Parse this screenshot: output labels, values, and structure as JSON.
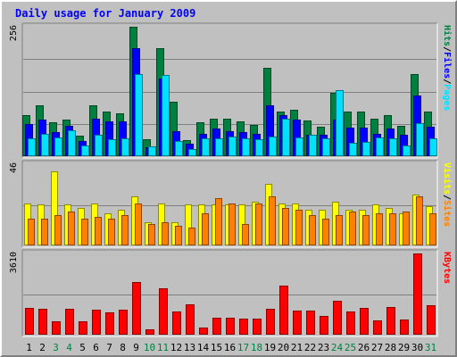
{
  "chart_data": {
    "type": "bar",
    "title": "Daily usage for January 2009",
    "categories": [
      "1",
      "2",
      "3",
      "4",
      "5",
      "6",
      "7",
      "8",
      "9",
      "10",
      "11",
      "12",
      "13",
      "14",
      "15",
      "16",
      "17",
      "18",
      "19",
      "20",
      "21",
      "22",
      "23",
      "24",
      "25",
      "26",
      "27",
      "28",
      "29",
      "30",
      "31"
    ],
    "weekend_days": [
      "3",
      "4",
      "10",
      "11",
      "17",
      "18",
      "24",
      "25",
      "31"
    ],
    "panels": [
      {
        "id": "hits-panel",
        "ymax": 256,
        "ymax_label": "256",
        "legend": [
          {
            "text": "Pages",
            "color": "#00e0ff"
          },
          {
            "text": "Files",
            "color": "#0000ff"
          },
          {
            "text": "Hits",
            "color": "#008040"
          }
        ],
        "series": [
          {
            "name": "Hits",
            "color": "#008040",
            "values": [
              82,
              100,
              67,
              72,
              40,
              100,
              88,
              84,
              256,
              33,
              214,
              108,
              31,
              67,
              75,
              75,
              69,
              62,
              175,
              88,
              92,
              70,
              58,
              126,
              88,
              88,
              75,
              82,
              60,
              163,
              88
            ]
          },
          {
            "name": "Files",
            "color": "#0000ff",
            "values": [
              64,
              72,
              47,
              60,
              30,
              75,
              68,
              68,
              214,
              18,
              154,
              50,
              24,
              45,
              55,
              50,
              48,
              45,
              100,
              82,
              72,
              43,
              42,
              72,
              56,
              56,
              45,
              55,
              42,
              120,
              58
            ]
          },
          {
            "name": "Pages",
            "color": "#00e0ff",
            "values": [
              36,
              45,
              37,
              51,
              22,
              43,
              34,
              36,
              163,
              19,
              160,
              30,
              14,
              35,
              35,
              38,
              35,
              33,
              38,
              75,
              37,
              43,
              35,
              131,
              27,
              29,
              37,
              35,
              22,
              65,
              36
            ]
          }
        ]
      },
      {
        "id": "visits-panel",
        "ymax": 46,
        "ymax_label": "46",
        "legend": [
          {
            "text": "Sites",
            "color": "#ff8000"
          },
          {
            "text": "Visits",
            "color": "#ffff00"
          }
        ],
        "series": [
          {
            "name": "Visits",
            "color": "#ffff00",
            "values": [
              24,
              23,
              42,
              23,
              21,
              24,
              18,
              20,
              28,
              13,
              24,
              13,
              23,
              23,
              23,
              23,
              23,
              25,
              35,
              24,
              24,
              20,
              20,
              25,
              20,
              20,
              23,
              21,
              18,
              29,
              22
            ]
          },
          {
            "name": "Sites",
            "color": "#ff8000",
            "values": [
              15,
              15,
              17,
              19,
              15,
              16,
              15,
              17,
              24,
              12,
              13,
              11,
              10,
              18,
              27,
              24,
              12,
              24,
              28,
              21,
              20,
              17,
              15,
              17,
              19,
              17,
              18,
              18,
              19,
              28,
              18
            ]
          }
        ]
      },
      {
        "id": "kbytes-panel",
        "ymax": 3610,
        "ymax_label": "3610",
        "legend": [
          {
            "text": "KBytes",
            "color": "#ff0000"
          }
        ],
        "series": [
          {
            "name": "KBytes",
            "color": "#ff0000",
            "values": [
              1190,
              1150,
              610,
              1150,
              610,
              1100,
              980,
              1130,
              2350,
              220,
              2070,
              1020,
              1330,
              300,
              760,
              760,
              700,
              730,
              1140,
              2170,
              1060,
              1060,
              850,
              1500,
              1020,
              1190,
              630,
              1240,
              680,
              3610,
              1290
            ]
          }
        ]
      }
    ],
    "grid": true
  }
}
